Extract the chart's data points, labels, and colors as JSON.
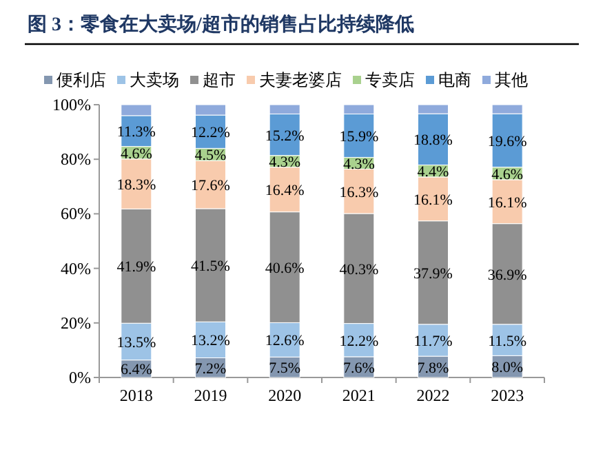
{
  "chart_data": {
    "type": "bar",
    "stacked": true,
    "title": "图 3：零食在大卖场/超市的销售占比持续降低",
    "categories": [
      "2018",
      "2019",
      "2020",
      "2021",
      "2022",
      "2023"
    ],
    "series": [
      {
        "name": "便利店",
        "color": "#8497b0",
        "values": [
          6.4,
          7.2,
          7.5,
          7.6,
          7.8,
          8.0
        ],
        "value_labels": [
          "6.4%",
          "7.2%",
          "7.5%",
          "7.6%",
          "7.8%",
          "8.0%"
        ]
      },
      {
        "name": "大卖场",
        "color": "#9dc3e6",
        "values": [
          13.5,
          13.2,
          12.6,
          12.2,
          11.7,
          11.5
        ],
        "value_labels": [
          "13.5%",
          "13.2%",
          "12.6%",
          "12.2%",
          "11.7%",
          "11.5%"
        ]
      },
      {
        "name": "超市",
        "color": "#909090",
        "values": [
          41.9,
          41.5,
          40.6,
          40.3,
          37.9,
          36.9
        ],
        "value_labels": [
          "41.9%",
          "41.5%",
          "40.6%",
          "40.3%",
          "37.9%",
          "36.9%"
        ]
      },
      {
        "name": "夫妻老婆店",
        "color": "#f8cbad",
        "values": [
          18.3,
          17.6,
          16.4,
          16.3,
          16.1,
          16.1
        ],
        "value_labels": [
          "18.3%",
          "17.6%",
          "16.4%",
          "16.3%",
          "16.1%",
          "16.1%"
        ]
      },
      {
        "name": "专卖店",
        "color": "#a9d18e",
        "values": [
          4.6,
          4.5,
          4.3,
          4.3,
          4.4,
          4.6
        ],
        "value_labels": [
          "4.6%",
          "4.5%",
          "4.3%",
          "4.3%",
          "4.4%",
          "4.6%"
        ]
      },
      {
        "name": "电商",
        "color": "#5b9bd5",
        "values": [
          11.3,
          12.2,
          15.2,
          15.9,
          18.8,
          19.6
        ],
        "value_labels": [
          "11.3%",
          "12.2%",
          "15.2%",
          "15.9%",
          "18.8%",
          "19.6%"
        ]
      },
      {
        "name": "其他",
        "color": "#8faadc",
        "values": [
          4.0,
          3.8,
          3.4,
          3.4,
          3.3,
          3.3
        ]
      }
    ],
    "ylim": [
      0,
      100
    ],
    "yticks": [
      {
        "value": 0,
        "label": "0%"
      },
      {
        "value": 20,
        "label": "20%"
      },
      {
        "value": 40,
        "label": "40%"
      },
      {
        "value": 60,
        "label": "60%"
      },
      {
        "value": 80,
        "label": "80%"
      },
      {
        "value": 100,
        "label": "100%"
      }
    ],
    "legend": "top",
    "grid": false
  }
}
